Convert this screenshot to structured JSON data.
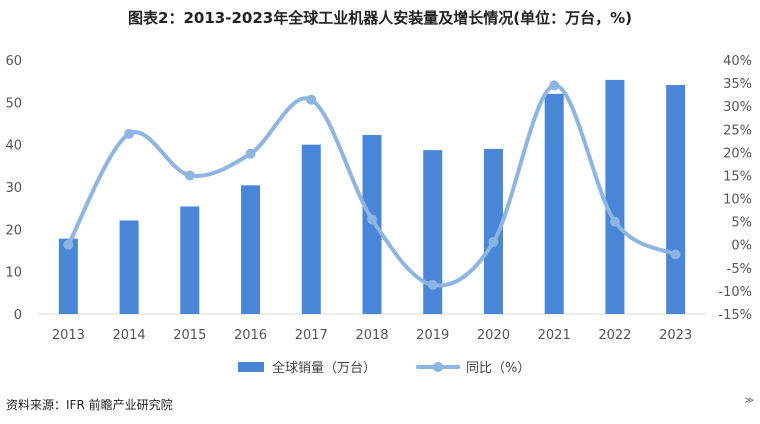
{
  "chart_data": {
    "type": "bar",
    "title": "图表2：2013-2023年全球工业机器人安装量及增长情况(单位：万台，%)",
    "categories": [
      "2013",
      "2014",
      "2015",
      "2016",
      "2017",
      "2018",
      "2019",
      "2020",
      "2021",
      "2022",
      "2023"
    ],
    "series": [
      {
        "name": "全球销量（万台）",
        "type": "bar",
        "axis": "left",
        "values": [
          17.8,
          22.1,
          25.4,
          30.4,
          40.0,
          42.3,
          38.7,
          39.0,
          52.0,
          55.3,
          54.1
        ]
      },
      {
        "name": "同比（%）",
        "type": "line",
        "axis": "right",
        "values": [
          0,
          24,
          15,
          19.7,
          31.4,
          5.5,
          -8.7,
          0.6,
          34.5,
          5,
          -2.1
        ]
      }
    ],
    "ylim_left": [
      0,
      60
    ],
    "yticks_left": [
      "0",
      "10",
      "20",
      "30",
      "40",
      "50",
      "60"
    ],
    "ylim_right": [
      -15,
      40
    ],
    "yticks_right": [
      "-15%",
      "-10%",
      "-5%",
      "0%",
      "5%",
      "10%",
      "15%",
      "20%",
      "25%",
      "30%",
      "35%",
      "40%"
    ],
    "legend_position": "bottom",
    "colors": {
      "bar": "#4a86d8",
      "line": "#8db4e2"
    },
    "grid": false
  },
  "source_text": "资料来源：IFR 前瞻产业研究院",
  "corner_mark": "≫"
}
